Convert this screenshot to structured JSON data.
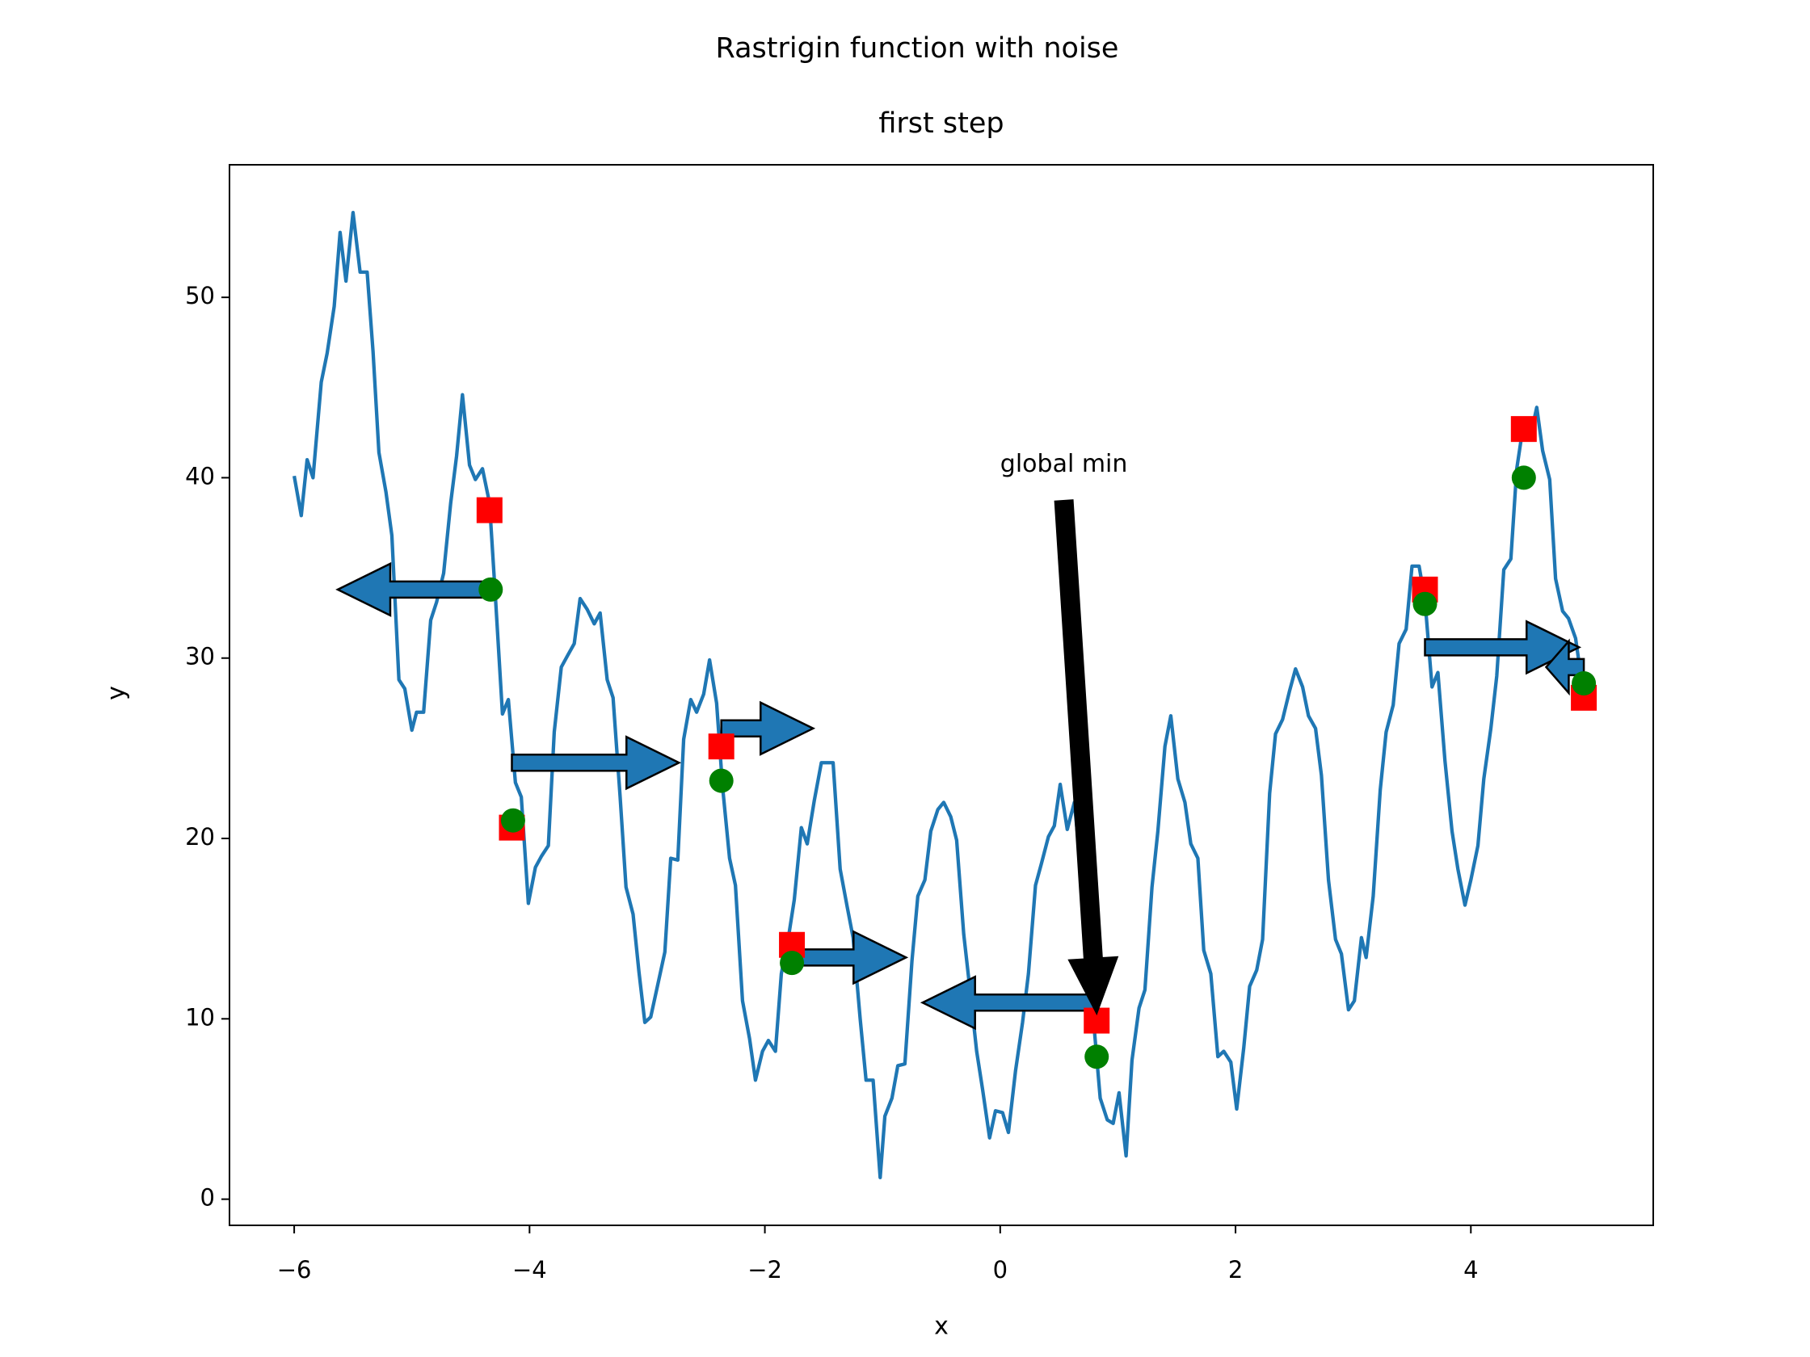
{
  "chart_data": {
    "type": "line",
    "title": "Rastrigin function with noise",
    "subtitle": "first step",
    "subtitle_color": "red",
    "x_label": "x",
    "y_label": "y",
    "xlim": [
      -6.55,
      5.55
    ],
    "ylim": [
      -1.45,
      57.35
    ],
    "xticks": [
      {
        "value": -6,
        "label": "−6"
      },
      {
        "value": -4,
        "label": "−4"
      },
      {
        "value": -2,
        "label": "−2"
      },
      0,
      2,
      4
    ],
    "yticks": [
      0,
      10,
      20,
      30,
      40,
      50
    ],
    "series": [
      {
        "color": "#1f77b4",
        "x": [
          -6.0,
          -5.94,
          -5.89,
          -5.84,
          -5.77,
          -5.72,
          -5.66,
          -5.61,
          -5.56,
          -5.5,
          -5.44,
          -5.38,
          -5.33,
          -5.28,
          -5.22,
          -5.17,
          -5.11,
          -5.06,
          -5.0,
          -4.96,
          -4.9,
          -4.84,
          -4.79,
          -4.73,
          -4.67,
          -4.62,
          -4.57,
          -4.51,
          -4.46,
          -4.4,
          -4.34,
          -4.29,
          -4.23,
          -4.18,
          -4.12,
          -4.07,
          -4.01,
          -3.95,
          -3.9,
          -3.84,
          -3.79,
          -3.73,
          -3.68,
          -3.62,
          -3.57,
          -3.51,
          -3.45,
          -3.4,
          -3.34,
          -3.29,
          -3.23,
          -3.18,
          -3.12,
          -3.07,
          -3.02,
          -2.97,
          -2.91,
          -2.85,
          -2.8,
          -2.74,
          -2.69,
          -2.63,
          -2.58,
          -2.52,
          -2.47,
          -2.41,
          -2.36,
          -2.3,
          -2.25,
          -2.19,
          -2.13,
          -2.08,
          -2.02,
          -1.97,
          -1.91,
          -1.86,
          -1.8,
          -1.75,
          -1.69,
          -1.64,
          -1.58,
          -1.52,
          -1.47,
          -1.42,
          -1.36,
          -1.3,
          -1.25,
          -1.19,
          -1.14,
          -1.08,
          -1.02,
          -0.98,
          -0.92,
          -0.87,
          -0.81,
          -0.75,
          -0.7,
          -0.64,
          -0.59,
          -0.53,
          -0.48,
          -0.42,
          -0.37,
          -0.31,
          -0.26,
          -0.2,
          -0.15,
          -0.09,
          -0.04,
          0.02,
          0.07,
          0.13,
          0.19,
          0.24,
          0.3,
          0.35,
          0.41,
          0.46,
          0.51,
          0.57,
          0.63,
          0.69,
          0.74,
          0.8,
          0.85,
          0.91,
          0.96,
          1.01,
          1.07,
          1.12,
          1.18,
          1.23,
          1.29,
          1.34,
          1.4,
          1.45,
          1.51,
          1.57,
          1.62,
          1.68,
          1.73,
          1.79,
          1.85,
          1.9,
          1.96,
          2.01,
          2.07,
          2.12,
          2.18,
          2.23,
          2.29,
          2.34,
          2.4,
          2.46,
          2.51,
          2.57,
          2.62,
          2.68,
          2.73,
          2.79,
          2.85,
          2.9,
          2.96,
          3.01,
          3.07,
          3.11,
          3.17,
          3.23,
          3.28,
          3.34,
          3.39,
          3.45,
          3.5,
          3.56,
          3.61,
          3.67,
          3.72,
          3.78,
          3.84,
          3.89,
          3.95,
          4.0,
          4.06,
          4.11,
          4.17,
          4.22,
          4.28,
          4.34,
          4.39,
          4.45,
          4.5,
          4.56,
          4.61,
          4.67,
          4.72,
          4.78,
          4.83,
          4.89,
          4.94
        ],
        "values": [
          40.1,
          37.9,
          41.0,
          40.0,
          45.3,
          46.9,
          49.5,
          53.6,
          50.9,
          54.7,
          51.4,
          51.4,
          47.0,
          41.4,
          39.2,
          36.8,
          28.8,
          28.3,
          26.0,
          27.0,
          27.0,
          32.1,
          33.1,
          34.7,
          38.6,
          41.2,
          44.6,
          40.7,
          39.9,
          40.5,
          38.6,
          33.4,
          26.9,
          27.7,
          23.1,
          22.3,
          16.4,
          18.4,
          19.0,
          19.6,
          25.9,
          29.5,
          30.1,
          30.8,
          33.3,
          32.7,
          31.9,
          32.5,
          28.8,
          27.8,
          22.3,
          17.3,
          15.8,
          12.6,
          9.8,
          10.1,
          11.9,
          13.7,
          18.9,
          18.8,
          25.5,
          27.7,
          27.0,
          28.0,
          29.9,
          27.5,
          22.9,
          18.9,
          17.4,
          11.0,
          8.9,
          6.6,
          8.2,
          8.8,
          8.2,
          12.5,
          14.5,
          16.6,
          20.6,
          19.7,
          22.1,
          24.2,
          24.2,
          24.2,
          18.3,
          16.2,
          14.5,
          10.0,
          6.6,
          6.6,
          1.2,
          4.6,
          5.6,
          7.4,
          7.5,
          13.2,
          16.8,
          17.7,
          20.4,
          21.6,
          22.0,
          21.2,
          19.9,
          14.7,
          11.8,
          8.2,
          6.1,
          3.4,
          4.9,
          4.8,
          3.7,
          7.1,
          9.8,
          12.5,
          17.4,
          18.6,
          20.1,
          20.7,
          23.0,
          20.5,
          22.0,
          18.1,
          14.9,
          9.4,
          5.6,
          4.4,
          4.2,
          5.9,
          2.4,
          7.7,
          10.6,
          11.6,
          17.3,
          20.4,
          25.1,
          26.8,
          23.3,
          22.0,
          19.7,
          18.9,
          13.8,
          12.5,
          7.9,
          8.2,
          7.6,
          5.0,
          8.4,
          11.8,
          12.7,
          14.4,
          22.5,
          25.8,
          26.6,
          28.2,
          29.4,
          28.4,
          26.8,
          26.1,
          23.5,
          17.7,
          14.4,
          13.6,
          10.5,
          11.0,
          14.5,
          13.4,
          16.8,
          22.7,
          25.9,
          27.4,
          30.8,
          31.6,
          35.1,
          35.1,
          33.2,
          28.4,
          29.2,
          24.3,
          20.4,
          18.3,
          16.3,
          17.7,
          19.6,
          23.3,
          26.1,
          29.0,
          34.9,
          35.5,
          40.5,
          43.1,
          42.1,
          43.9,
          41.5,
          39.9,
          34.4,
          32.6,
          32.2,
          31.1,
          28.8
        ]
      }
    ],
    "arrows": {
      "color": "#1f77b4",
      "x": [
        -4.33,
        -4.15,
        -2.37,
        -1.77,
        0.82,
        3.61,
        4.96
      ],
      "y": [
        33.8,
        24.2,
        26.1,
        13.4,
        10.9,
        30.6,
        29.5
      ],
      "x_end": [
        -5.63,
        -2.73,
        -1.59,
        -0.8,
        -0.66,
        4.92,
        4.64
      ]
    },
    "markers": [
      {
        "marker": "square",
        "color": "red",
        "x": [
          -4.34,
          -4.15,
          -2.37,
          -1.77,
          0.82,
          3.61,
          4.45,
          4.96
        ],
        "values": [
          38.2,
          20.6,
          25.1,
          14.1,
          9.9,
          33.8,
          42.7,
          27.8
        ]
      },
      {
        "marker": "circle",
        "color": "green",
        "x": [
          -4.33,
          -4.14,
          -2.37,
          -1.77,
          0.82,
          3.61,
          4.45,
          4.96
        ],
        "values": [
          33.8,
          21.0,
          23.2,
          13.1,
          7.9,
          33.0,
          40.0,
          28.6
        ]
      }
    ],
    "annotation": {
      "text": "global min",
      "xy": [
        0.82,
        10.3
      ],
      "xytext": [
        0,
        40
      ],
      "color": "black"
    }
  }
}
